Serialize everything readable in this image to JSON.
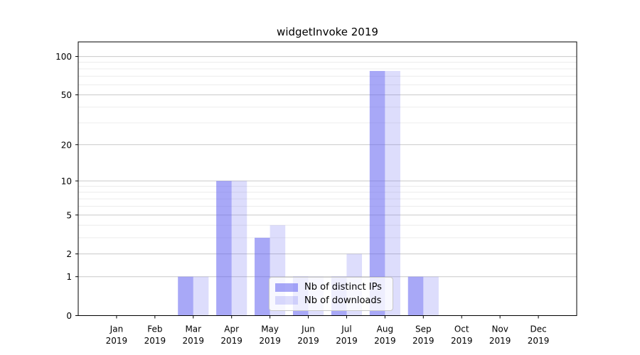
{
  "chart_data": {
    "type": "bar",
    "title": "widgetInvoke 2019",
    "categories": [
      "Jan",
      "Feb",
      "Mar",
      "Apr",
      "May",
      "Jun",
      "Jul",
      "Aug",
      "Sep",
      "Oct",
      "Nov",
      "Dec"
    ],
    "category_year": "2019",
    "series": [
      {
        "name": "Nb of distinct IPs",
        "color": "rgba(100,100,240,0.56)",
        "values": [
          0,
          0,
          1,
          10,
          3,
          1,
          1,
          77,
          1,
          0,
          0,
          0
        ]
      },
      {
        "name": "Nb of downloads",
        "color": "rgba(100,100,240,0.22)",
        "values": [
          0,
          0,
          1,
          10,
          4,
          1,
          2,
          77,
          1,
          0,
          0,
          0
        ]
      }
    ],
    "yscale": "log1p",
    "ylim": [
      0,
      130
    ],
    "y_ticks": [
      0,
      1,
      2,
      5,
      10,
      20,
      50,
      100
    ],
    "y_minor_ticks": [
      3,
      4,
      6,
      7,
      8,
      9,
      30,
      40,
      60,
      70,
      80,
      90
    ],
    "xlabel": "",
    "ylabel": "",
    "grid": true,
    "legend_position": "lower center",
    "colors": {
      "spine": "#000000",
      "grid_major": "#c9c9c9",
      "grid_minor": "#ececec",
      "legend_border": "#c8c8c8",
      "text": "#000000"
    }
  }
}
